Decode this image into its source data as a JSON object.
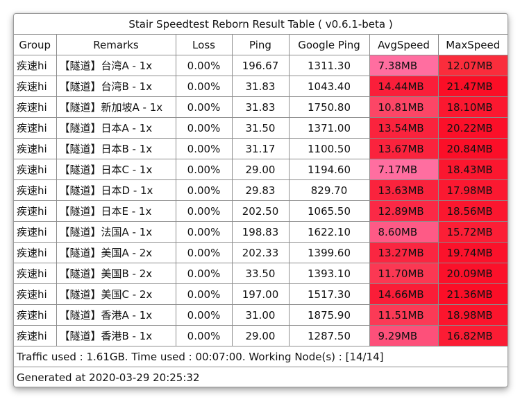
{
  "title": "Stair Speedtest Reborn Result Table ( v0.6.1-beta )",
  "headers": [
    "Group",
    "Remarks",
    "Loss",
    "Ping",
    "Google Ping",
    "AvgSpeed",
    "MaxSpeed"
  ],
  "rows": [
    {
      "group": "疾速hi",
      "remarks": "【隧道】台湾A - 1x",
      "loss": "0.00%",
      "ping": "196.67",
      "google_ping": "1311.30",
      "avg": "7.38MB",
      "max": "12.07MB",
      "avg_color": "#ff6ea0",
      "max_color": "#fa2d3c"
    },
    {
      "group": "疾速hi",
      "remarks": "【隧道】台湾B - 1x",
      "loss": "0.00%",
      "ping": "31.83",
      "google_ping": "1043.40",
      "avg": "14.44MB",
      "max": "21.47MB",
      "avg_color": "#fa1e3a",
      "max_color": "#fb0e26"
    },
    {
      "group": "疾速hi",
      "remarks": "【隧道】新加坡A - 1x",
      "loss": "0.00%",
      "ping": "31.83",
      "google_ping": "1750.80",
      "avg": "10.81MB",
      "max": "18.10MB",
      "avg_color": "#fc4666",
      "max_color": "#fb1830"
    },
    {
      "group": "疾速hi",
      "remarks": "【隧道】日本A - 1x",
      "loss": "0.00%",
      "ping": "31.50",
      "google_ping": "1371.00",
      "avg": "13.54MB",
      "max": "20.22MB",
      "avg_color": "#fa233d",
      "max_color": "#fb1029"
    },
    {
      "group": "疾速hi",
      "remarks": "【隧道】日本B - 1x",
      "loss": "0.00%",
      "ping": "31.17",
      "google_ping": "1100.50",
      "avg": "13.67MB",
      "max": "20.84MB",
      "avg_color": "#fa233d",
      "max_color": "#fb0f28"
    },
    {
      "group": "疾速hi",
      "remarks": "【隧道】日本C - 1x",
      "loss": "0.00%",
      "ping": "29.00",
      "google_ping": "1194.60",
      "avg": "7.17MB",
      "max": "18.43MB",
      "avg_color": "#ff6ea0",
      "max_color": "#fb172f"
    },
    {
      "group": "疾速hi",
      "remarks": "【隧道】日本D - 1x",
      "loss": "0.00%",
      "ping": "29.83",
      "google_ping": "829.70",
      "avg": "13.63MB",
      "max": "17.98MB",
      "avg_color": "#fa233d",
      "max_color": "#fb1931"
    },
    {
      "group": "疾速hi",
      "remarks": "【隧道】日本E - 1x",
      "loss": "0.00%",
      "ping": "202.50",
      "google_ping": "1065.50",
      "avg": "12.89MB",
      "max": "18.56MB",
      "avg_color": "#fb2946",
      "max_color": "#fb172f"
    },
    {
      "group": "疾速hi",
      "remarks": "【隧道】法国A - 1x",
      "loss": "0.00%",
      "ping": "198.83",
      "google_ping": "1622.10",
      "avg": "8.60MB",
      "max": "15.72MB",
      "avg_color": "#fe5a86",
      "max_color": "#fb1f36"
    },
    {
      "group": "疾速hi",
      "remarks": "【隧道】美国A - 2x",
      "loss": "0.00%",
      "ping": "202.33",
      "google_ping": "1399.60",
      "avg": "13.27MB",
      "max": "19.74MB",
      "avg_color": "#fa2641",
      "max_color": "#fb122b"
    },
    {
      "group": "疾速hi",
      "remarks": "【隧道】美国B - 2x",
      "loss": "0.00%",
      "ping": "33.50",
      "google_ping": "1393.10",
      "avg": "11.70MB",
      "max": "20.09MB",
      "avg_color": "#fb3853",
      "max_color": "#fb112a"
    },
    {
      "group": "疾速hi",
      "remarks": "【隧道】美国C - 2x",
      "loss": "0.00%",
      "ping": "197.00",
      "google_ping": "1517.30",
      "avg": "14.66MB",
      "max": "21.36MB",
      "avg_color": "#fa1d38",
      "max_color": "#fb0e27"
    },
    {
      "group": "疾速hi",
      "remarks": "【隧道】香港A - 1x",
      "loss": "0.00%",
      "ping": "31.00",
      "google_ping": "1875.90",
      "avg": "11.51MB",
      "max": "18.98MB",
      "avg_color": "#fb3a56",
      "max_color": "#fb152d"
    },
    {
      "group": "疾速hi",
      "remarks": "【隧道】香港B - 1x",
      "loss": "0.00%",
      "ping": "29.00",
      "google_ping": "1287.50",
      "avg": "9.29MB",
      "max": "16.82MB",
      "avg_color": "#fd507a",
      "max_color": "#fb1c34"
    }
  ],
  "footer": {
    "traffic": "Traffic used : 1.61GB. Time used : 00:07:00. Working Node(s) : [14/14]",
    "generated": "Generated at 2020-03-29 20:25:32"
  }
}
